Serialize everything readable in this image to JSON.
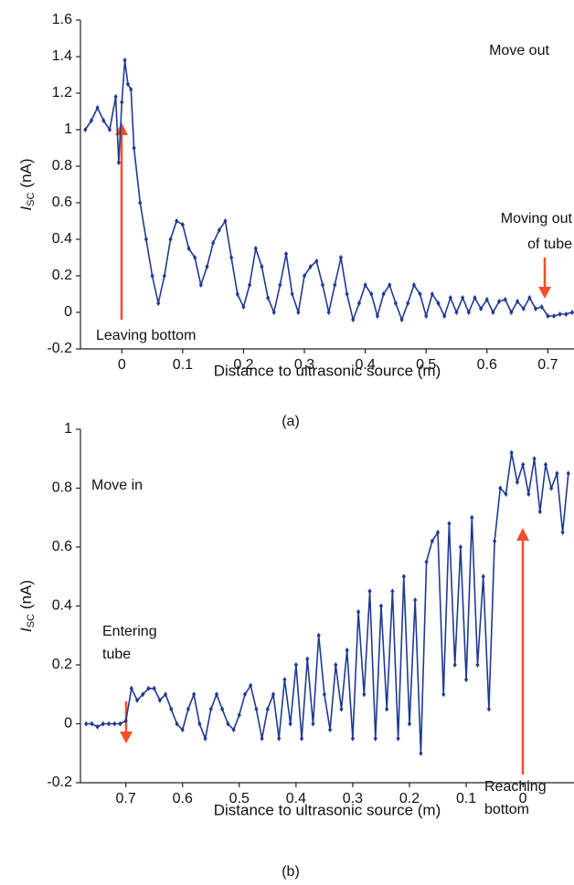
{
  "chart_data": [
    {
      "type": "line",
      "caption": "(a)",
      "xlabel": "Distance to ultrasonic source (m)",
      "ylabel": {
        "main": "I",
        "sub": "sc",
        "unit": "(nA)"
      },
      "xlim": [
        -0.068,
        0.743
      ],
      "ylim": [
        -0.2,
        1.6
      ],
      "xticks": [
        0,
        0.1,
        0.2,
        0.3,
        0.4,
        0.5,
        0.6,
        0.7
      ],
      "yticks": [
        -0.2,
        0,
        0.2,
        0.4,
        0.6,
        0.8,
        1,
        1.2,
        1.4,
        1.6
      ],
      "annotations": [
        {
          "lines": [
            "Move out"
          ]
        },
        {
          "lines": [
            "Moving out",
            "of tube"
          ]
        },
        {
          "lines": [
            "Leaving bottom"
          ]
        }
      ],
      "x": [
        -0.06,
        -0.05,
        -0.04,
        -0.03,
        -0.02,
        -0.01,
        -0.005,
        0,
        0.005,
        0.01,
        0.015,
        0.02,
        0.03,
        0.04,
        0.05,
        0.06,
        0.07,
        0.08,
        0.09,
        0.1,
        0.11,
        0.12,
        0.13,
        0.14,
        0.15,
        0.16,
        0.17,
        0.18,
        0.19,
        0.2,
        0.21,
        0.22,
        0.23,
        0.24,
        0.25,
        0.26,
        0.27,
        0.28,
        0.29,
        0.3,
        0.31,
        0.32,
        0.33,
        0.34,
        0.35,
        0.36,
        0.37,
        0.38,
        0.39,
        0.4,
        0.41,
        0.42,
        0.43,
        0.44,
        0.45,
        0.46,
        0.47,
        0.48,
        0.49,
        0.5,
        0.51,
        0.52,
        0.53,
        0.54,
        0.55,
        0.56,
        0.57,
        0.58,
        0.59,
        0.6,
        0.61,
        0.62,
        0.63,
        0.64,
        0.65,
        0.66,
        0.67,
        0.68,
        0.69,
        0.7,
        0.71,
        0.72,
        0.73,
        0.74
      ],
      "series": [
        {
          "color": "#1f3a93",
          "values": [
            1.0,
            1.05,
            1.12,
            1.05,
            1.0,
            1.18,
            0.82,
            1.15,
            1.38,
            1.25,
            1.22,
            0.9,
            0.6,
            0.4,
            0.2,
            0.05,
            0.2,
            0.4,
            0.5,
            0.48,
            0.35,
            0.3,
            0.15,
            0.25,
            0.38,
            0.45,
            0.5,
            0.3,
            0.1,
            0.03,
            0.15,
            0.35,
            0.25,
            0.08,
            0.0,
            0.15,
            0.32,
            0.1,
            0.0,
            0.2,
            0.25,
            0.28,
            0.15,
            0.0,
            0.15,
            0.3,
            0.1,
            -0.04,
            0.05,
            0.15,
            0.1,
            -0.02,
            0.1,
            0.15,
            0.05,
            -0.04,
            0.05,
            0.15,
            0.1,
            -0.02,
            0.1,
            0.05,
            -0.02,
            0.08,
            0.0,
            0.08,
            0.0,
            0.08,
            0.02,
            0.07,
            0.0,
            0.06,
            0.07,
            0.0,
            0.06,
            0.02,
            0.08,
            0.02,
            0.03,
            -0.02,
            -0.02,
            -0.01,
            -0.01,
            0.0
          ]
        }
      ]
    },
    {
      "type": "line",
      "caption": "(b)",
      "xlabel": "Distance to ultrasonic source (m)",
      "ylabel": {
        "main": "I",
        "sub": "sc",
        "unit": "(nA)"
      },
      "xlim": [
        0.78,
        -0.09
      ],
      "ylim": [
        -0.2,
        1
      ],
      "xticks": [
        0.7,
        0.6,
        0.5,
        0.4,
        0.3,
        0.2,
        0.1,
        0
      ],
      "yticks": [
        -0.2,
        0,
        0.2,
        0.4,
        0.6,
        0.8,
        1
      ],
      "annotations": [
        {
          "lines": [
            "Move in"
          ]
        },
        {
          "lines": [
            "Entering",
            "tube"
          ]
        },
        {
          "lines": [
            "Reaching",
            "bottom"
          ]
        }
      ],
      "x": [
        0.77,
        0.76,
        0.75,
        0.74,
        0.73,
        0.72,
        0.71,
        0.7,
        0.69,
        0.68,
        0.67,
        0.66,
        0.65,
        0.64,
        0.63,
        0.62,
        0.61,
        0.6,
        0.59,
        0.58,
        0.57,
        0.56,
        0.55,
        0.54,
        0.53,
        0.52,
        0.51,
        0.5,
        0.49,
        0.48,
        0.47,
        0.46,
        0.45,
        0.44,
        0.43,
        0.42,
        0.41,
        0.4,
        0.39,
        0.38,
        0.37,
        0.36,
        0.35,
        0.34,
        0.33,
        0.32,
        0.31,
        0.3,
        0.29,
        0.28,
        0.27,
        0.26,
        0.25,
        0.24,
        0.23,
        0.22,
        0.21,
        0.2,
        0.19,
        0.18,
        0.17,
        0.16,
        0.15,
        0.14,
        0.13,
        0.12,
        0.11,
        0.1,
        0.09,
        0.08,
        0.07,
        0.06,
        0.05,
        0.04,
        0.03,
        0.02,
        0.01,
        0,
        -0.01,
        -0.02,
        -0.03,
        -0.04,
        -0.05,
        -0.06,
        -0.07,
        -0.08
      ],
      "series": [
        {
          "color": "#1f3a93",
          "values": [
            0,
            0,
            -0.01,
            0,
            0,
            0,
            0,
            0.01,
            0.12,
            0.08,
            0.1,
            0.12,
            0.12,
            0.08,
            0.1,
            0.05,
            0.0,
            -0.02,
            0.05,
            0.1,
            0.0,
            -0.05,
            0.05,
            0.1,
            0.05,
            0.0,
            -0.02,
            0.03,
            0.1,
            0.13,
            0.05,
            -0.05,
            0.05,
            0.1,
            -0.05,
            0.15,
            0.0,
            0.2,
            -0.05,
            0.22,
            0.0,
            0.3,
            0.1,
            -0.02,
            0.2,
            0.05,
            0.25,
            -0.05,
            0.38,
            0.1,
            0.45,
            -0.05,
            0.4,
            0.05,
            0.45,
            -0.05,
            0.5,
            0.0,
            0.42,
            -0.1,
            0.55,
            0.62,
            0.65,
            0.1,
            0.68,
            0.2,
            0.6,
            0.15,
            0.7,
            0.2,
            0.5,
            0.05,
            0.62,
            0.8,
            0.78,
            0.92,
            0.82,
            0.88,
            0.78,
            0.9,
            0.72,
            0.88,
            0.8,
            0.85,
            0.65,
            0.85
          ]
        }
      ]
    }
  ]
}
